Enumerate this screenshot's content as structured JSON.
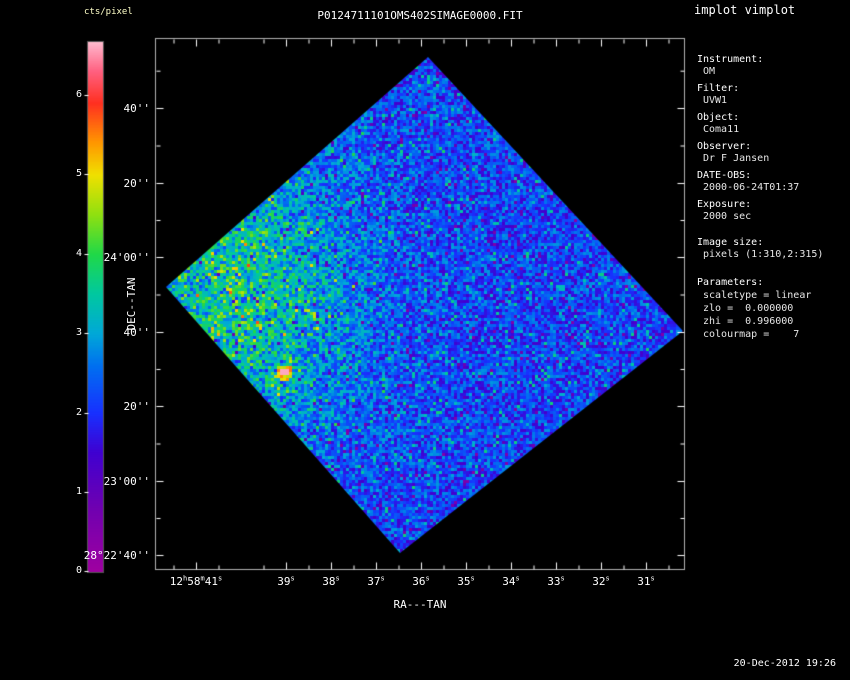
{
  "window": {
    "app_title": "implot vimplot",
    "timestamp": "20-Dec-2012 19:26"
  },
  "plot": {
    "title": "P0124711101OMS402SIMAGE0000.FIT",
    "xlabel": "RA---TAN",
    "ylabel": "DEC--TAN",
    "colorbar": {
      "label": "cts/pixel",
      "tick_labels": [
        "6",
        "5",
        "4",
        "3",
        "2",
        "1",
        "0"
      ]
    },
    "x_tick_labels": [
      "12h58m41s",
      "39s",
      "38s",
      "37s",
      "36s",
      "35s",
      "34s",
      "33s",
      "32s",
      "31s"
    ],
    "y_tick_labels": [
      "40''",
      "20''",
      "24'00''",
      "40''",
      "20''",
      "23'00''",
      "28°22'40''"
    ]
  },
  "info_panel": {
    "groups": [
      {
        "label": "Instrument:",
        "value": "OM"
      },
      {
        "label": "Filter:",
        "value": "UVW1"
      },
      {
        "label": "Object:",
        "value": "Coma11"
      },
      {
        "label": "Observer:",
        "value": "Dr F Jansen"
      },
      {
        "label": "DATE-OBS:",
        "value": "2000-06-24T01:37"
      },
      {
        "label": "Exposure:",
        "value": "2000 sec"
      },
      {
        "label": "Image size:",
        "value": "pixels (1:310,2:315)"
      }
    ],
    "parameters": {
      "header": "Parameters:",
      "lines": [
        "scaletype = linear",
        "zlo =  0.000000",
        "zhi =  0.996000",
        "colourmap =    7"
      ]
    }
  },
  "chart_data": {
    "type": "heatmap",
    "title": "P0124711101OMS402SIMAGE0000.FIT",
    "xlabel": "RA---TAN",
    "ylabel": "DEC--TAN",
    "x_tick_labels": [
      "12h58m41s",
      "39s",
      "38s",
      "37s",
      "36s",
      "35s",
      "34s",
      "33s",
      "32s",
      "31s"
    ],
    "y_tick_labels": [
      "40''",
      "20''",
      "24'00''",
      "40''",
      "20''",
      "23'00''",
      "28°22'40''"
    ],
    "colorbar": {
      "label": "cts/pixel",
      "tick_values": [
        0,
        1,
        2,
        3,
        4,
        5,
        6
      ],
      "scaletype": "linear",
      "zlo": 0.0,
      "zhi": 0.996,
      "colourmap": 7
    },
    "image_size_pixels": "(1:310,2:315)",
    "orientation": "square field rotated ~45 degrees (diamond) inside axes box",
    "description": "Noisy OM UVW1 count-rate sky image: background mostly 1-3 cts/pixel (blue) with scattered dark purple and cyan speckles; an enhanced greenish region (~3-4 cts/pixel) left of centre around 12h58m40s +28°23'40''; a small bright white point source (~6 cts/pixel) near 12h58m39s +28°23'20''."
  },
  "colors": {
    "background": "#000000",
    "frame": "#b4b4b4",
    "text": "#ffffff",
    "colorbar_label": "#ffffc8"
  }
}
